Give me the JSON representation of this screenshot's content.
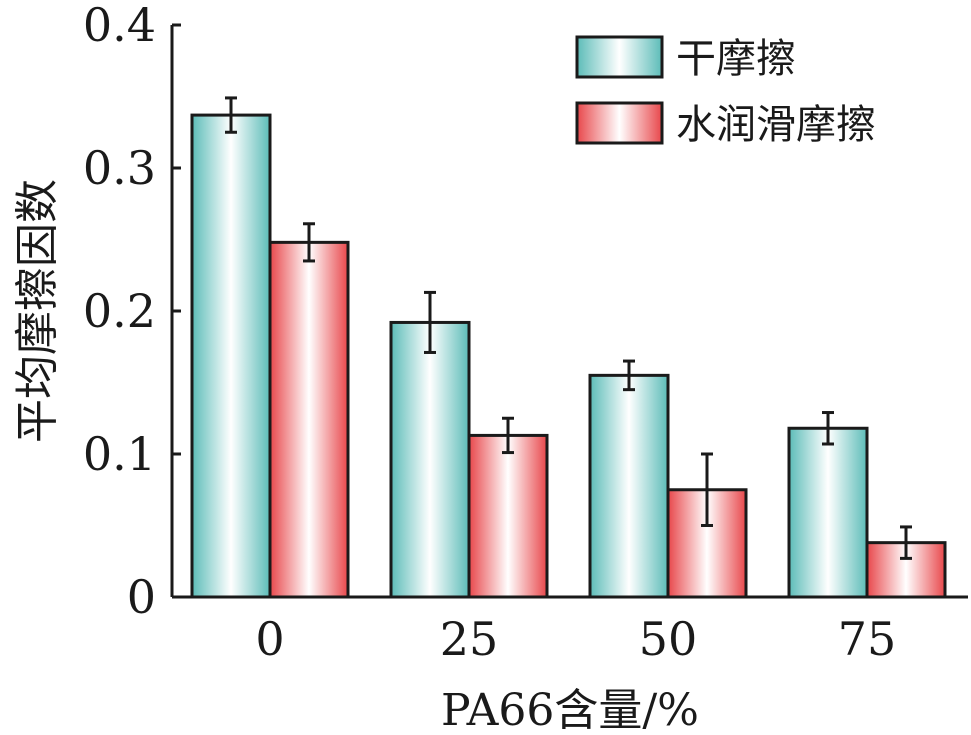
{
  "chart_data": {
    "type": "bar",
    "categories": [
      "0",
      "25",
      "50",
      "75"
    ],
    "series": [
      {
        "name": "干摩擦",
        "values": [
          0.337,
          0.192,
          0.155,
          0.118
        ],
        "errors": [
          0.012,
          0.021,
          0.01,
          0.011
        ],
        "colors": {
          "edge": "#5cbcb8",
          "center": "#ffffff"
        }
      },
      {
        "name": "水润滑摩擦",
        "values": [
          0.248,
          0.113,
          0.075,
          0.038
        ],
        "errors": [
          0.013,
          0.012,
          0.025,
          0.011
        ],
        "colors": {
          "edge": "#e8474b",
          "center": "#ffffff"
        }
      }
    ],
    "xlabel": "PA66含量/%",
    "ylabel": "平均摩擦因数",
    "ylim": [
      0,
      0.4
    ],
    "yticks": [
      0,
      0.1,
      0.2,
      0.3,
      0.4
    ],
    "ytick_labels": [
      "0",
      "0.1",
      "0.2",
      "0.3",
      "0.4"
    ],
    "legend": "top-right",
    "grid": false
  }
}
